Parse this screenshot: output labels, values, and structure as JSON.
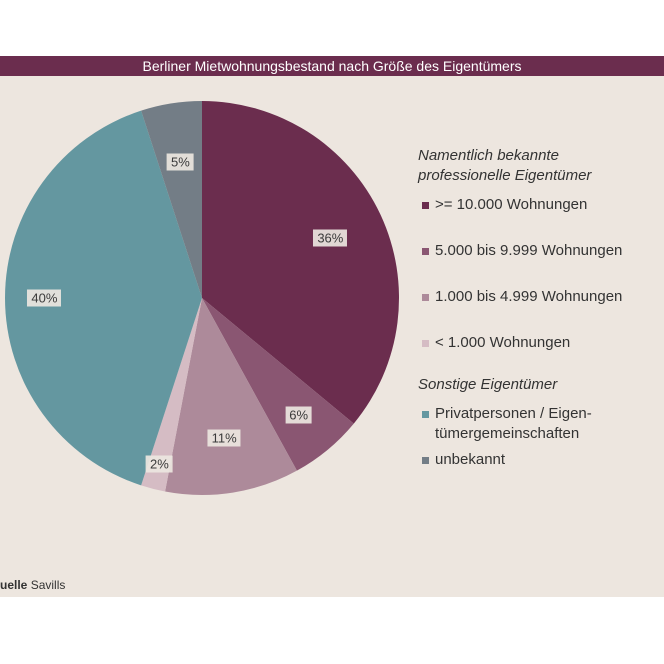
{
  "title": "Berliner Mietwohnungsbestand nach Größe des Eigentümers",
  "source": {
    "label": "uelle",
    "value": "Savills"
  },
  "legend": {
    "groups": [
      {
        "title": "Namentlich bekannte\nprofessionelle Eigentümer",
        "items": [
          {
            "label": ">= 10.000 Wohnungen",
            "color": "#6b2d4e"
          },
          {
            "label": "5.000 bis 9.999 Wohnungen",
            "color": "#8a5672"
          },
          {
            "label": "1.000 bis 4.999 Wohnungen",
            "color": "#ad8a9a"
          },
          {
            "label": "< 1.000 Wohnungen",
            "color": "#d5bcc4"
          }
        ]
      },
      {
        "title": "Sonstige Eigentümer",
        "items": [
          {
            "label": "Privatpersonen / Eigen-\ntümergemeinschaften",
            "color": "#6497a0"
          },
          {
            "label": "unbekannt",
            "color": "#737d86"
          }
        ]
      }
    ]
  },
  "chart_data": {
    "type": "pie",
    "title": "Berliner Mietwohnungsbestand nach Größe des Eigentümers",
    "start": "12 o'clock, clockwise",
    "slices": [
      {
        "category": ">= 10.000 Wohnungen",
        "value": 36,
        "label": "36%",
        "color": "#6b2d4e"
      },
      {
        "category": "5.000 bis 9.999 Wohnungen",
        "value": 6,
        "label": "6%",
        "color": "#8a5672"
      },
      {
        "category": "1.000 bis 4.999 Wohnungen",
        "value": 11,
        "label": "11%",
        "color": "#ad8a9a"
      },
      {
        "category": "< 1.000 Wohnungen",
        "value": 2,
        "label": "2%",
        "color": "#d5bcc4"
      },
      {
        "category": "Privatpersonen / Eigentümergemeinschaften",
        "value": 40,
        "label": "40%",
        "color": "#6497a0"
      },
      {
        "category": "unbekannt",
        "value": 5,
        "label": "5%",
        "color": "#737d86"
      }
    ]
  }
}
